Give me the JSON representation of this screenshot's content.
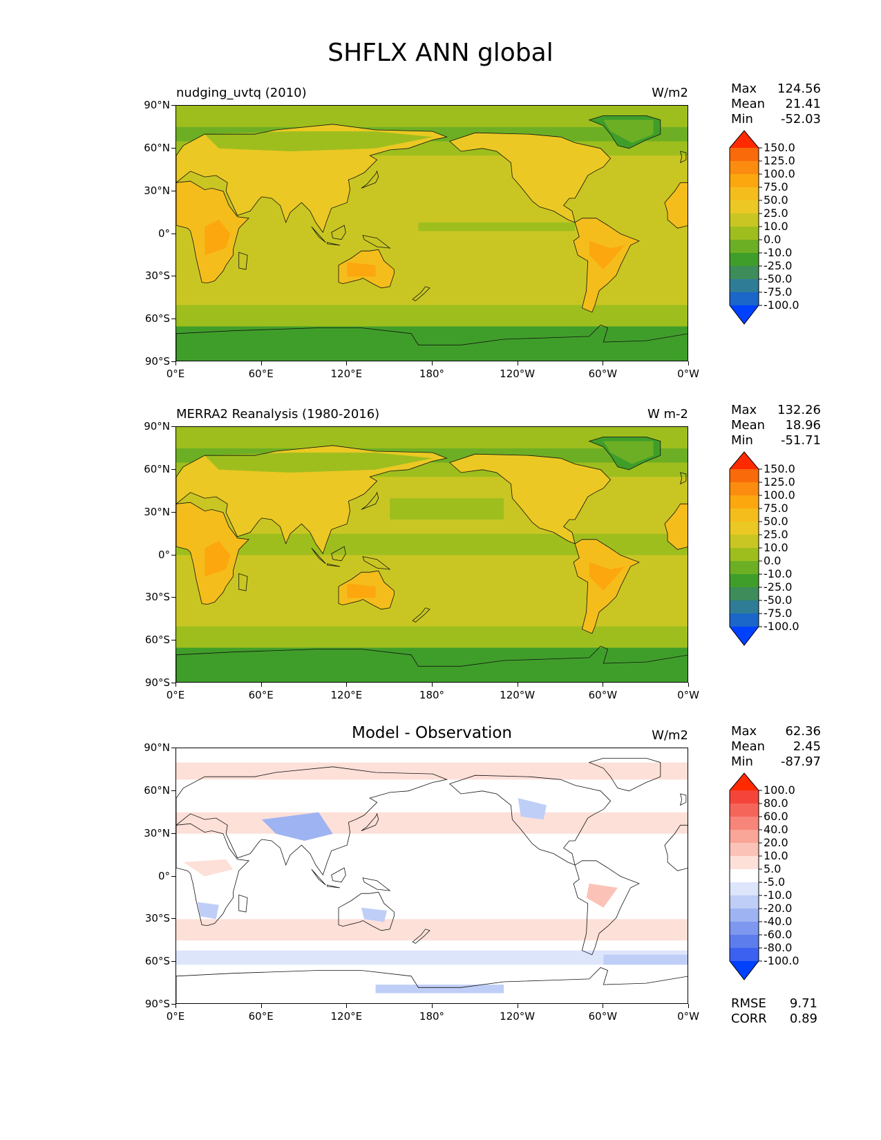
{
  "figure": {
    "title": "SHFLX ANN global"
  },
  "axes": {
    "y_ticks": [
      "90°N",
      "60°N",
      "30°N",
      "0°",
      "30°S",
      "60°S",
      "90°S"
    ],
    "x_ticks": [
      "0°E",
      "60°E",
      "120°E",
      "180°",
      "120°W",
      "60°W",
      "0°W"
    ]
  },
  "panels": [
    {
      "id": "model",
      "title_left": "nudging_uvtq (2010)",
      "title_center": "",
      "units": "W/m2",
      "stats": {
        "max_label": "Max",
        "max": "124.56",
        "mean_label": "Mean",
        "mean": "21.41",
        "min_label": "Min",
        "min": "-52.03"
      },
      "colorbar": {
        "labels": [
          "150.0",
          "125.0",
          "100.0",
          "75.0",
          "50.0",
          "25.0",
          "10.0",
          "0.0",
          "-10.0",
          "-25.0",
          "-50.0",
          "-75.0",
          "-100.0"
        ],
        "colors": [
          "#f86a0a",
          "#fb8c10",
          "#fca70e",
          "#f5bd1c",
          "#ebc823",
          "#c9c623",
          "#9ebe1e",
          "#6daf24",
          "#3f9e2a",
          "#3d8c5a",
          "#2e7c96",
          "#1b66c9"
        ],
        "over_color": "#ff2a00",
        "under_color": "#0040ff"
      }
    },
    {
      "id": "obs",
      "title_left": "MERRA2 Reanalysis (1980-2016)",
      "title_center": "",
      "units": "W m-2",
      "stats": {
        "max_label": "Max",
        "max": "132.26",
        "mean_label": "Mean",
        "mean": "18.96",
        "min_label": "Min",
        "min": "-51.71"
      },
      "colorbar": {
        "labels": [
          "150.0",
          "125.0",
          "100.0",
          "75.0",
          "50.0",
          "25.0",
          "10.0",
          "0.0",
          "-10.0",
          "-25.0",
          "-50.0",
          "-75.0",
          "-100.0"
        ],
        "colors": [
          "#f86a0a",
          "#fb8c10",
          "#fca70e",
          "#f5bd1c",
          "#ebc823",
          "#c9c623",
          "#9ebe1e",
          "#6daf24",
          "#3f9e2a",
          "#3d8c5a",
          "#2e7c96",
          "#1b66c9"
        ],
        "over_color": "#ff2a00",
        "under_color": "#0040ff"
      }
    },
    {
      "id": "diff",
      "title_left": "",
      "title_center": "Model - Observation",
      "units": "W/m2",
      "stats": {
        "max_label": "Max",
        "max": "62.36",
        "mean_label": "Mean",
        "mean": "2.45",
        "min_label": "Min",
        "min": "-87.97"
      },
      "colorbar": {
        "labels": [
          "100.0",
          "80.0",
          "60.0",
          "40.0",
          "20.0",
          "10.0",
          "5.0",
          "-5.0",
          "-10.0",
          "-20.0",
          "-40.0",
          "-60.0",
          "-80.0",
          "-100.0"
        ],
        "colors": [
          "#f5453a",
          "#f6655a",
          "#f7857a",
          "#f9a597",
          "#fbc3b7",
          "#fde0d8",
          "#ffffff",
          "#dde5fb",
          "#bfcef7",
          "#9eb3f2",
          "#7e98ef",
          "#5d7dec",
          "#3c60f0"
        ],
        "over_color": "#ff2a00",
        "under_color": "#0040ff"
      },
      "metrics": {
        "rmse_label": "RMSE",
        "rmse": "9.71",
        "corr_label": "CORR",
        "corr": "0.89"
      }
    }
  ],
  "chart_data": {
    "type": "heatmap",
    "title": "SHFLX ANN global",
    "variable": "SHFLX",
    "season": "ANN",
    "projection": "PlateCarree global",
    "lon_range": [
      0,
      360
    ],
    "lat_range": [
      -90,
      90
    ],
    "maps": [
      {
        "name": "nudging_uvtq (2010)",
        "units": "W/m2",
        "max": 124.56,
        "mean": 21.41,
        "min": -52.03,
        "levels": [
          -100,
          -75,
          -50,
          -25,
          -10,
          0,
          10,
          25,
          50,
          75,
          100,
          125,
          150
        ]
      },
      {
        "name": "MERRA2 Reanalysis (1980-2016)",
        "units": "W m-2",
        "max": 132.26,
        "mean": 18.96,
        "min": -51.71,
        "levels": [
          -100,
          -75,
          -50,
          -25,
          -10,
          0,
          10,
          25,
          50,
          75,
          100,
          125,
          150
        ]
      },
      {
        "name": "Model - Observation",
        "units": "W/m2",
        "max": 62.36,
        "mean": 2.45,
        "min": -87.97,
        "rmse": 9.71,
        "corr": 0.89,
        "levels": [
          -100,
          -80,
          -60,
          -40,
          -20,
          -10,
          -5,
          5,
          10,
          20,
          40,
          60,
          80,
          100
        ]
      }
    ]
  }
}
